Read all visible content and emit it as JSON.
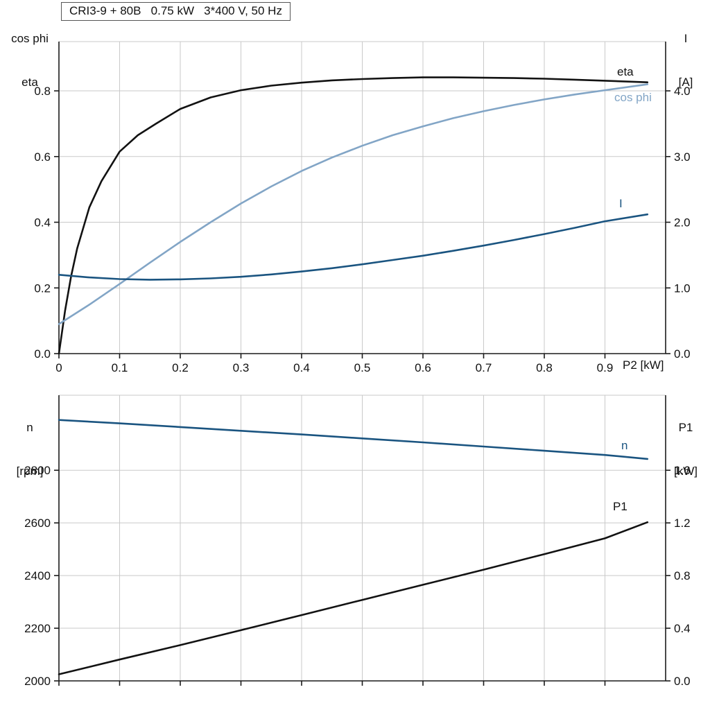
{
  "header": {
    "title": "CRI3-9 + 80B   0.75 kW   3*400 V, 50 Hz"
  },
  "colors": {
    "black": "#121212",
    "light_blue": "#82a5c6",
    "dark_blue": "#1a5480",
    "grid": "#c9c9c9",
    "axis": "#1a1a1a",
    "background": "#ffffff"
  },
  "top_chart_labels": {
    "left_line1": "cos phi",
    "left_line2": "eta",
    "right_line1": "I",
    "right_line2": "[A]",
    "x_axis": "P2 [kW]",
    "curve_eta": "eta",
    "curve_cos_phi": "cos phi",
    "curve_current": "I"
  },
  "bottom_chart_labels": {
    "left_line1": "n",
    "left_line2": "[rpm]",
    "right_line1": "P1",
    "right_line2": "[kW]",
    "curve_n": "n",
    "curve_p1": "P1"
  },
  "chart_data": [
    {
      "type": "line",
      "title": "CRI3-9 + 80B   0.75 kW   3*400 V, 50 Hz",
      "xlabel": "P2 [kW]",
      "ylabel_left": "cos phi / eta",
      "ylabel_right": "I [A]",
      "grid": true,
      "legend_position": "right-inline",
      "xlim": [
        0,
        1.0
      ],
      "ylim_left": [
        0,
        0.95
      ],
      "ylim_right": [
        0,
        4.75
      ],
      "xticks": [
        {
          "value": 0.0,
          "label": "0"
        },
        {
          "value": 0.1,
          "label": "0.1"
        },
        {
          "value": 0.2,
          "label": "0.2"
        },
        {
          "value": 0.3,
          "label": "0.3"
        },
        {
          "value": 0.4,
          "label": "0.4"
        },
        {
          "value": 0.5,
          "label": "0.5"
        },
        {
          "value": 0.6,
          "label": "0.6"
        },
        {
          "value": 0.7,
          "label": "0.7"
        },
        {
          "value": 0.8,
          "label": "0.8"
        },
        {
          "value": 0.9,
          "label": "0.9"
        }
      ],
      "yticks_left": [
        {
          "value": 0.0,
          "label": "0.0"
        },
        {
          "value": 0.2,
          "label": "0.2"
        },
        {
          "value": 0.4,
          "label": "0.4"
        },
        {
          "value": 0.6,
          "label": "0.6"
        },
        {
          "value": 0.8,
          "label": "0.8"
        }
      ],
      "yticks_right": [
        {
          "value": 0.0,
          "label": "0.0"
        },
        {
          "value": 1.0,
          "label": "1.0"
        },
        {
          "value": 2.0,
          "label": "2.0"
        },
        {
          "value": 3.0,
          "label": "3.0"
        },
        {
          "value": 4.0,
          "label": "4.0"
        }
      ],
      "series": [
        {
          "name": "eta",
          "axis": "left",
          "color": "black",
          "x": [
            0,
            0.01,
            0.02,
            0.03,
            0.05,
            0.07,
            0.1,
            0.13,
            0.16,
            0.2,
            0.25,
            0.3,
            0.35,
            0.4,
            0.45,
            0.5,
            0.55,
            0.6,
            0.65,
            0.7,
            0.75,
            0.8,
            0.85,
            0.9,
            0.97
          ],
          "y": [
            0,
            0.13,
            0.235,
            0.32,
            0.445,
            0.525,
            0.615,
            0.665,
            0.7,
            0.745,
            0.78,
            0.802,
            0.816,
            0.825,
            0.832,
            0.836,
            0.839,
            0.841,
            0.841,
            0.84,
            0.839,
            0.837,
            0.834,
            0.831,
            0.826
          ]
        },
        {
          "name": "cos-phi",
          "axis": "left",
          "color": "light_blue",
          "x": [
            0,
            0.05,
            0.1,
            0.15,
            0.2,
            0.25,
            0.3,
            0.35,
            0.4,
            0.45,
            0.5,
            0.55,
            0.6,
            0.65,
            0.7,
            0.75,
            0.8,
            0.85,
            0.9,
            0.97
          ],
          "y": [
            0.09,
            0.149,
            0.212,
            0.277,
            0.34,
            0.4,
            0.457,
            0.509,
            0.556,
            0.597,
            0.633,
            0.665,
            0.692,
            0.717,
            0.738,
            0.757,
            0.774,
            0.789,
            0.802,
            0.82
          ]
        },
        {
          "name": "current",
          "axis": "right",
          "color": "dark_blue",
          "x": [
            0,
            0.05,
            0.1,
            0.15,
            0.2,
            0.25,
            0.3,
            0.35,
            0.4,
            0.45,
            0.5,
            0.55,
            0.6,
            0.65,
            0.7,
            0.75,
            0.8,
            0.85,
            0.9,
            0.97
          ],
          "y": [
            1.2,
            1.16,
            1.135,
            1.125,
            1.13,
            1.145,
            1.17,
            1.205,
            1.25,
            1.3,
            1.36,
            1.425,
            1.49,
            1.565,
            1.645,
            1.73,
            1.82,
            1.915,
            2.015,
            2.12
          ]
        }
      ]
    },
    {
      "type": "line",
      "title": "",
      "xlabel": "",
      "ylabel_left": "n [rpm]",
      "ylabel_right": "P1 [kW]",
      "grid": true,
      "xlim": [
        0,
        1.0
      ],
      "ylim_left": [
        2000,
        3085
      ],
      "ylim_right": [
        0,
        2.17
      ],
      "xticks": [
        {
          "value": 0.0,
          "label": ""
        },
        {
          "value": 0.1,
          "label": ""
        },
        {
          "value": 0.2,
          "label": ""
        },
        {
          "value": 0.3,
          "label": ""
        },
        {
          "value": 0.4,
          "label": ""
        },
        {
          "value": 0.5,
          "label": ""
        },
        {
          "value": 0.6,
          "label": ""
        },
        {
          "value": 0.7,
          "label": ""
        },
        {
          "value": 0.8,
          "label": ""
        },
        {
          "value": 0.9,
          "label": ""
        }
      ],
      "yticks_left": [
        {
          "value": 2000,
          "label": "2000"
        },
        {
          "value": 2200,
          "label": "2200"
        },
        {
          "value": 2400,
          "label": "2400"
        },
        {
          "value": 2600,
          "label": "2600"
        },
        {
          "value": 2800,
          "label": "2800"
        }
      ],
      "yticks_right": [
        {
          "value": 0.0,
          "label": "0.0"
        },
        {
          "value": 0.4,
          "label": "0.4"
        },
        {
          "value": 0.8,
          "label": "0.8"
        },
        {
          "value": 1.2,
          "label": "1.2"
        },
        {
          "value": 1.6,
          "label": "1.6"
        }
      ],
      "series": [
        {
          "name": "n",
          "axis": "left",
          "color": "dark_blue",
          "x": [
            0,
            0.1,
            0.2,
            0.3,
            0.4,
            0.5,
            0.6,
            0.7,
            0.8,
            0.9,
            0.97
          ],
          "y": [
            2991,
            2978,
            2964,
            2950,
            2936,
            2921,
            2906,
            2890,
            2874,
            2858,
            2843
          ]
        },
        {
          "name": "p1",
          "axis": "right",
          "color": "black",
          "x": [
            0,
            0.1,
            0.2,
            0.3,
            0.4,
            0.5,
            0.6,
            0.7,
            0.8,
            0.9,
            0.97
          ],
          "y": [
            0.05,
            0.162,
            0.272,
            0.385,
            0.5,
            0.615,
            0.73,
            0.845,
            0.963,
            1.083,
            1.205
          ]
        }
      ]
    }
  ]
}
